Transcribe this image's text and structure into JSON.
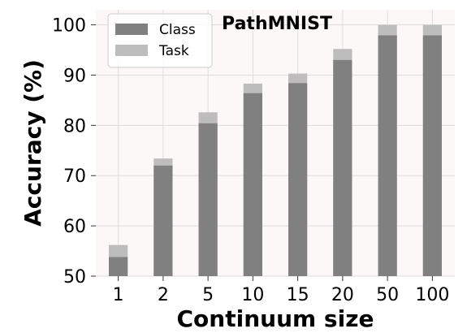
{
  "chart_data": {
    "type": "bar",
    "title": "PathMNIST",
    "xlabel": "Continuum size",
    "ylabel": "Accuracy (%)",
    "categories": [
      "1",
      "2",
      "5",
      "10",
      "15",
      "20",
      "50",
      "100"
    ],
    "series": [
      {
        "name": "Class",
        "color": "#808080",
        "values": [
          53.8,
          72.0,
          80.4,
          86.4,
          88.4,
          93.0,
          97.9,
          97.9
        ]
      },
      {
        "name": "Task",
        "color": "#bdbdbd",
        "values": [
          56.2,
          73.4,
          82.6,
          88.3,
          90.3,
          95.2,
          100.0,
          100.0
        ]
      }
    ],
    "stacking": "overlay",
    "ylim": [
      50,
      103
    ],
    "yticks": [
      50,
      60,
      70,
      80,
      90,
      100
    ],
    "grid": true,
    "legend_position": "top-left",
    "plot_background": "#fcf8f8",
    "grid_color": "#dddddd"
  }
}
